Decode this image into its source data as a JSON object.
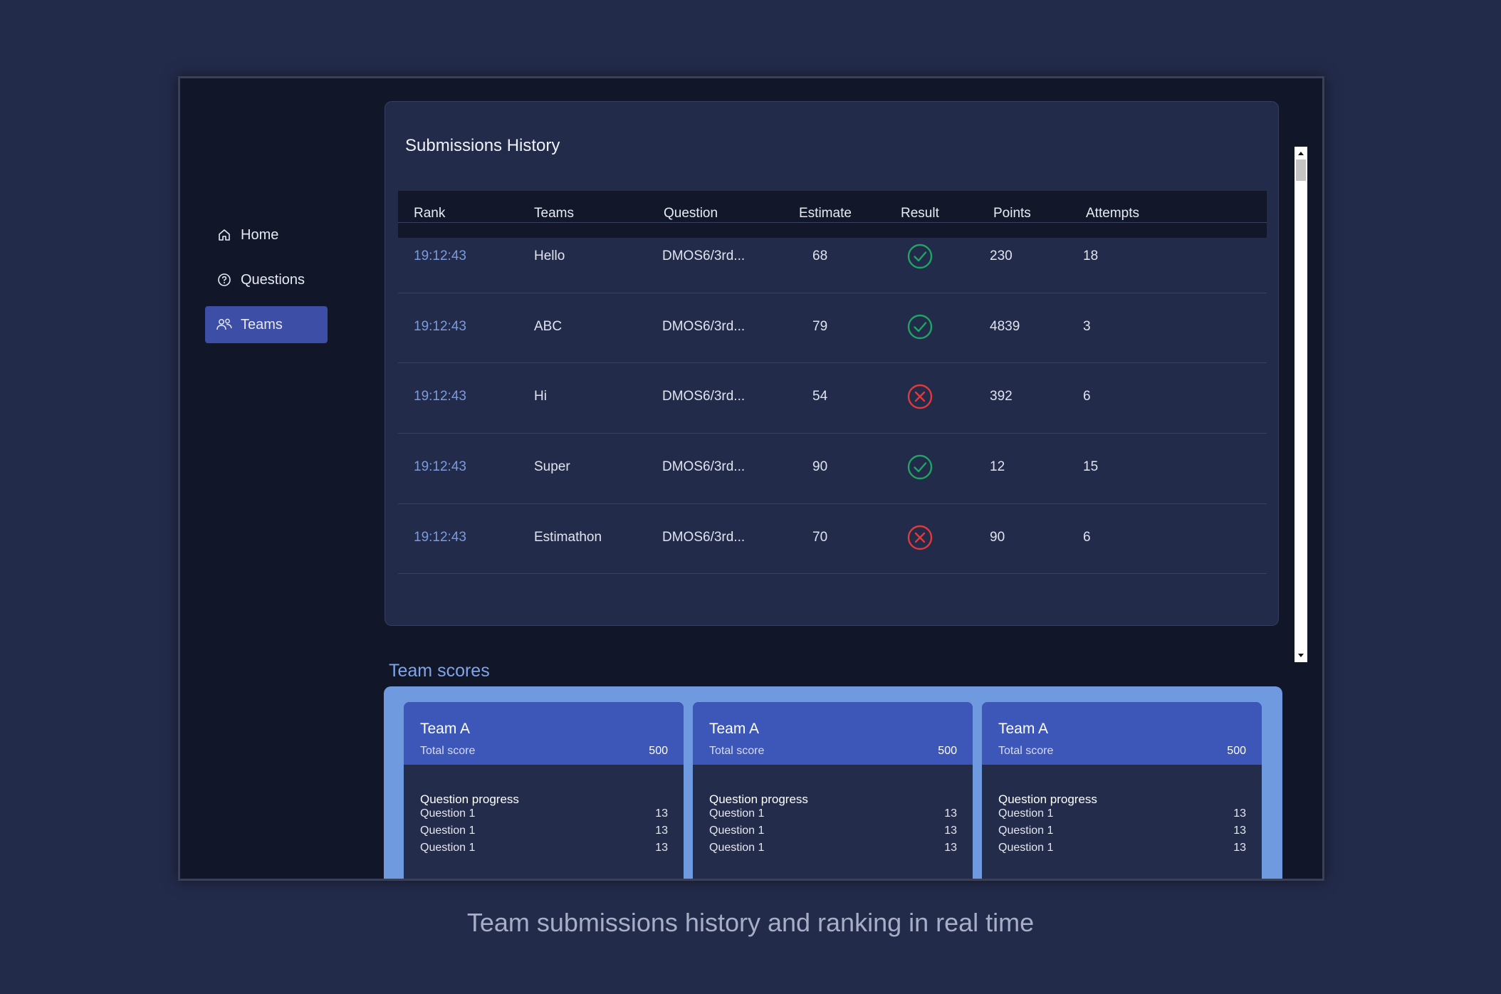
{
  "sidebar": {
    "items": [
      {
        "label": "Home",
        "icon": "home-icon",
        "active": false
      },
      {
        "label": "Questions",
        "icon": "question-circle-icon",
        "active": false
      },
      {
        "label": "Teams",
        "icon": "users-icon",
        "active": true
      }
    ]
  },
  "submissions": {
    "title": "Submissions History",
    "columns": [
      "Rank",
      "Teams",
      "Question",
      "Estimate",
      "Result",
      "Points",
      "Attempts"
    ],
    "rows": [
      {
        "rank": "19:12:43",
        "team": "Hello",
        "question": "DMOS6/3rd...",
        "estimate": "68",
        "result": "correct",
        "points": "230",
        "attempts": "18"
      },
      {
        "rank": "19:12:43",
        "team": "ABC",
        "question": "DMOS6/3rd...",
        "estimate": "79",
        "result": "correct",
        "points": "4839",
        "attempts": "3"
      },
      {
        "rank": "19:12:43",
        "team": "Hi",
        "question": "DMOS6/3rd...",
        "estimate": "54",
        "result": "incorrect",
        "points": "392",
        "attempts": "6"
      },
      {
        "rank": "19:12:43",
        "team": "Super",
        "question": "DMOS6/3rd...",
        "estimate": "90",
        "result": "correct",
        "points": "12",
        "attempts": "15"
      },
      {
        "rank": "19:12:43",
        "team": "Estimathon",
        "question": "DMOS6/3rd...",
        "estimate": "70",
        "result": "incorrect",
        "points": "90",
        "attempts": "6"
      }
    ]
  },
  "team_scores": {
    "title": "Team scores",
    "cards": [
      {
        "name": "Team A",
        "total_label": "Total score",
        "total": "500",
        "progress_label": "Question progress",
        "questions": [
          {
            "label": "Question 1",
            "value": "13"
          },
          {
            "label": "Question 1",
            "value": "13"
          },
          {
            "label": "Question 1",
            "value": "13"
          }
        ]
      },
      {
        "name": "Team A",
        "total_label": "Total score",
        "total": "500",
        "progress_label": "Question progress",
        "questions": [
          {
            "label": "Question 1",
            "value": "13"
          },
          {
            "label": "Question 1",
            "value": "13"
          },
          {
            "label": "Question 1",
            "value": "13"
          }
        ]
      },
      {
        "name": "Team A",
        "total_label": "Total score",
        "total": "500",
        "progress_label": "Question progress",
        "questions": [
          {
            "label": "Question 1",
            "value": "13"
          },
          {
            "label": "Question 1",
            "value": "13"
          },
          {
            "label": "Question 1",
            "value": "13"
          }
        ]
      }
    ]
  },
  "caption": "Team submissions history and ranking in real time",
  "colors": {
    "correct": "#1fa463",
    "incorrect": "#e03a3a",
    "accent": "#3d4ea6"
  }
}
